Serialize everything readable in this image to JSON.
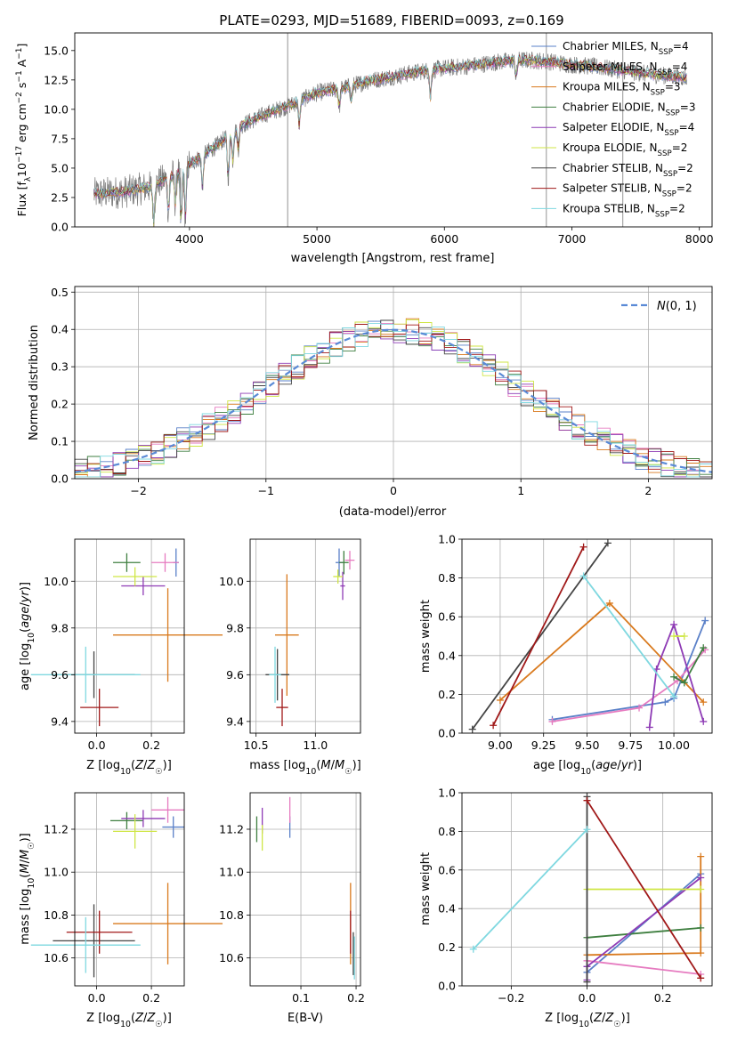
{
  "figure_title": "PLATE=0293, MJD=51689, FIBERID=0093, z=0.169",
  "colors": {
    "chabrier_miles": "#5a80c8",
    "salpeter_miles": "#e67bc0",
    "kroupa_miles": "#d97a1e",
    "chabrier_elodie": "#3f7f40",
    "salpeter_elodie": "#8e3bb5",
    "kroupa_elodie": "#cfe646",
    "chabrier_stelib": "#444444",
    "salpeter_stelib": "#a01818",
    "kroupa_stelib": "#7fd8e0",
    "observed": "#7a7a7a"
  },
  "chart_data": [
    {
      "id": "spectrum",
      "type": "line",
      "title": "PLATE=0293, MJD=51689, FIBERID=0093, z=0.169",
      "xlabel": "wavelength [Angstrom, rest frame]",
      "ylabel": "Flux [f_λ 10^-17 erg cm^-2 s^-1 A^-1]",
      "xlim": [
        3100,
        8100
      ],
      "ylim": [
        0,
        16.5
      ],
      "xticks": [
        4000,
        5000,
        6000,
        7000,
        8000
      ],
      "yticks": [
        0.0,
        2.5,
        5.0,
        7.5,
        10.0,
        12.5,
        15.0
      ],
      "legend_position": "top-right",
      "legend": [
        {
          "label": "Chabrier MILES, N",
          "sub": "SSP",
          "suffix": "=4",
          "color_key": "chabrier_miles"
        },
        {
          "label": "Salpeter MILES, N",
          "sub": "SSP",
          "suffix": "=4",
          "color_key": "salpeter_miles"
        },
        {
          "label": "Kroupa MILES, N",
          "sub": "SSP",
          "suffix": "=3",
          "color_key": "kroupa_miles"
        },
        {
          "label": "Chabrier ELODIE, N",
          "sub": "SSP",
          "suffix": "=3",
          "color_key": "chabrier_elodie"
        },
        {
          "label": "Salpeter ELODIE, N",
          "sub": "SSP",
          "suffix": "=4",
          "color_key": "salpeter_elodie"
        },
        {
          "label": "Kroupa ELODIE, N",
          "sub": "SSP",
          "suffix": "=2",
          "color_key": "kroupa_elodie"
        },
        {
          "label": "Chabrier STELIB, N",
          "sub": "SSP",
          "suffix": "=2",
          "color_key": "chabrier_stelib"
        },
        {
          "label": "Salpeter STELIB, N",
          "sub": "SSP",
          "suffix": "=2",
          "color_key": "salpeter_stelib"
        },
        {
          "label": "Kroupa STELIB, N",
          "sub": "SSP",
          "suffix": "=2",
          "color_key": "kroupa_stelib"
        }
      ],
      "continuum": {
        "x": [
          3250,
          3500,
          3700,
          3900,
          4000,
          4200,
          4400,
          4600,
          4800,
          5000,
          5200,
          5400,
          5600,
          5800,
          6000,
          6200,
          6400,
          6600,
          6800,
          7000,
          7200,
          7400,
          7600,
          7800,
          8000
        ],
        "y": [
          2.8,
          3.0,
          3.4,
          4.6,
          5.3,
          6.8,
          8.6,
          9.6,
          10.4,
          11.4,
          11.8,
          12.4,
          12.8,
          13.2,
          13.5,
          13.7,
          14.0,
          14.2,
          14.1,
          13.8,
          13.6,
          13.3,
          13.0,
          12.8,
          12.6
        ]
      },
      "spikes": [
        {
          "x": 4770,
          "y0": 0,
          "y1": 16.5
        },
        {
          "x": 6800,
          "y0": 0,
          "y1": 16.5
        },
        {
          "x": 7400,
          "y0": 0,
          "y1": 15.2
        },
        {
          "x": 3930,
          "y0": 0.3,
          "y1": 5.0
        }
      ]
    },
    {
      "id": "residuals",
      "type": "histogram",
      "xlabel": "(data-model)/error",
      "ylabel": "Normed distribution",
      "xlim": [
        -2.5,
        2.5
      ],
      "ylim": [
        0,
        0.515
      ],
      "xticks": [
        -2,
        -1,
        0,
        1,
        2
      ],
      "yticks": [
        0.0,
        0.1,
        0.2,
        0.3,
        0.4,
        0.5
      ],
      "bin_width": 0.1,
      "normal_label": "N(0,1)",
      "legend_position": "top-right"
    },
    {
      "id": "age_vs_Z",
      "type": "scatter",
      "xlabel": "Z [log10(Z/Z☉)]",
      "ylabel": "age [log10(age/yr)]",
      "xlim": [
        -0.08,
        0.32
      ],
      "ylim": [
        9.35,
        10.18
      ],
      "xticks": [
        0.0,
        0.2
      ],
      "yticks": [
        9.4,
        9.6,
        9.8,
        10.0
      ],
      "points": [
        {
          "s": "chabrier_miles",
          "x": 0.29,
          "y": 10.08,
          "xerr": 0.01,
          "yerr": 0.06
        },
        {
          "s": "salpeter_miles",
          "x": 0.25,
          "y": 10.08,
          "xerr": 0.05,
          "yerr": 0.04
        },
        {
          "s": "kroupa_miles",
          "x": 0.26,
          "y": 9.77,
          "xerr": 0.2,
          "yerr": 0.2
        },
        {
          "s": "chabrier_elodie",
          "x": 0.11,
          "y": 10.08,
          "xerr": 0.05,
          "yerr": 0.04
        },
        {
          "s": "salpeter_elodie",
          "x": 0.17,
          "y": 9.98,
          "xerr": 0.08,
          "yerr": 0.04
        },
        {
          "s": "kroupa_elodie",
          "x": 0.14,
          "y": 10.02,
          "xerr": 0.08,
          "yerr": 0.04
        },
        {
          "s": "chabrier_stelib",
          "x": -0.01,
          "y": 9.6,
          "xerr": 0.15,
          "yerr": 0.1
        },
        {
          "s": "salpeter_stelib",
          "x": 0.01,
          "y": 9.46,
          "xerr": 0.07,
          "yerr": 0.08
        },
        {
          "s": "kroupa_stelib",
          "x": -0.04,
          "y": 9.6,
          "xerr": 0.2,
          "yerr": 0.12
        }
      ]
    },
    {
      "id": "age_vs_mass",
      "type": "scatter",
      "xlabel": "mass [log10(M/M☉)]",
      "ylabel": "",
      "xlim": [
        10.45,
        11.38
      ],
      "ylim": [
        9.35,
        10.18
      ],
      "xticks": [
        10.5,
        11.0
      ],
      "yticks": [
        9.4,
        9.6,
        9.8,
        10.0
      ],
      "points": [
        {
          "s": "chabrier_miles",
          "x": 11.2,
          "y": 10.08,
          "xerr": 0.03,
          "yerr": 0.06
        },
        {
          "s": "salpeter_miles",
          "x": 11.29,
          "y": 10.09,
          "xerr": 0.04,
          "yerr": 0.04
        },
        {
          "s": "kroupa_miles",
          "x": 10.76,
          "y": 9.77,
          "xerr": 0.1,
          "yerr": 0.26
        },
        {
          "s": "chabrier_elodie",
          "x": 11.24,
          "y": 10.08,
          "xerr": 0.04,
          "yerr": 0.05
        },
        {
          "s": "salpeter_elodie",
          "x": 11.23,
          "y": 9.98,
          "xerr": 0.02,
          "yerr": 0.06
        },
        {
          "s": "kroupa_elodie",
          "x": 11.19,
          "y": 10.02,
          "xerr": 0.04,
          "yerr": 0.03
        },
        {
          "s": "chabrier_stelib",
          "x": 10.68,
          "y": 9.6,
          "xerr": 0.1,
          "yerr": 0.11
        },
        {
          "s": "salpeter_stelib",
          "x": 10.72,
          "y": 9.46,
          "xerr": 0.05,
          "yerr": 0.08
        },
        {
          "s": "kroupa_stelib",
          "x": 10.66,
          "y": 9.6,
          "xerr": 0.05,
          "yerr": 0.12
        }
      ]
    },
    {
      "id": "weight_vs_age",
      "type": "line",
      "xlabel": "age [log10(age/yr)]",
      "ylabel": "mass weight",
      "xlim": [
        8.78,
        10.22
      ],
      "ylim": [
        0,
        1.0
      ],
      "xticks": [
        9.0,
        9.25,
        9.5,
        9.75,
        10.0
      ],
      "yticks": [
        0.0,
        0.2,
        0.4,
        0.6,
        0.8,
        1.0
      ],
      "series": [
        {
          "s": "chabrier_miles",
          "x": [
            9.3,
            9.95,
            10.0,
            10.18
          ],
          "y": [
            0.07,
            0.16,
            0.18,
            0.58
          ]
        },
        {
          "s": "salpeter_miles",
          "x": [
            9.3,
            9.8,
            10.02,
            10.18
          ],
          "y": [
            0.06,
            0.13,
            0.27,
            0.43
          ]
        },
        {
          "s": "kroupa_miles",
          "x": [
            9.0,
            9.63,
            10.17
          ],
          "y": [
            0.17,
            0.67,
            0.16
          ]
        },
        {
          "s": "chabrier_elodie",
          "x": [
            10.0,
            10.06,
            10.17
          ],
          "y": [
            0.29,
            0.26,
            0.44
          ]
        },
        {
          "s": "salpeter_elodie",
          "x": [
            9.86,
            9.9,
            10.0,
            10.17
          ],
          "y": [
            0.03,
            0.33,
            0.56,
            0.06
          ]
        },
        {
          "s": "kroupa_elodie",
          "x": [
            10.0,
            10.06
          ],
          "y": [
            0.5,
            0.5
          ]
        },
        {
          "s": "chabrier_stelib",
          "x": [
            8.84,
            9.62
          ],
          "y": [
            0.02,
            0.98
          ]
        },
        {
          "s": "salpeter_stelib",
          "x": [
            8.96,
            9.48
          ],
          "y": [
            0.04,
            0.96
          ]
        },
        {
          "s": "kroupa_stelib",
          "x": [
            9.48,
            10.0
          ],
          "y": [
            0.81,
            0.19
          ]
        }
      ]
    },
    {
      "id": "mass_vs_Z",
      "type": "scatter",
      "xlabel": "Z [log10(Z/Z☉)]",
      "ylabel": "mass [log10(M/M☉)]",
      "xlim": [
        -0.08,
        0.32
      ],
      "ylim": [
        10.47,
        11.37
      ],
      "xticks": [
        0.0,
        0.2
      ],
      "yticks": [
        10.6,
        10.8,
        11.0,
        11.2
      ],
      "points": [
        {
          "s": "chabrier_miles",
          "x": 0.28,
          "y": 11.21,
          "xerr": 0.04,
          "yerr": 0.05
        },
        {
          "s": "salpeter_miles",
          "x": 0.26,
          "y": 11.29,
          "xerr": 0.06,
          "yerr": 0.06
        },
        {
          "s": "kroupa_miles",
          "x": 0.26,
          "y": 10.76,
          "xerr": 0.2,
          "yerr": 0.19
        },
        {
          "s": "chabrier_elodie",
          "x": 0.11,
          "y": 11.24,
          "xerr": 0.06,
          "yerr": 0.04
        },
        {
          "s": "salpeter_elodie",
          "x": 0.17,
          "y": 11.25,
          "xerr": 0.08,
          "yerr": 0.04
        },
        {
          "s": "kroupa_elodie",
          "x": 0.14,
          "y": 11.19,
          "xerr": 0.08,
          "yerr": 0.08
        },
        {
          "s": "chabrier_stelib",
          "x": -0.01,
          "y": 10.68,
          "xerr": 0.15,
          "yerr": 0.17
        },
        {
          "s": "salpeter_stelib",
          "x": 0.01,
          "y": 10.72,
          "xerr": 0.12,
          "yerr": 0.1
        },
        {
          "s": "kroupa_stelib",
          "x": -0.04,
          "y": 10.66,
          "xerr": 0.2,
          "yerr": 0.13
        }
      ]
    },
    {
      "id": "mass_vs_ebv",
      "type": "scatter",
      "xlabel": "E(B-V)",
      "ylabel": "",
      "xlim": [
        0.008,
        0.208
      ],
      "ylim": [
        10.47,
        11.37
      ],
      "xticks": [
        0.1,
        0.2
      ],
      "yticks": [
        10.6,
        10.8,
        11.0,
        11.2
      ],
      "points": [
        {
          "s": "chabrier_miles",
          "x": 0.08,
          "y": 11.21,
          "xerr": 0.0,
          "yerr": 0.05
        },
        {
          "s": "salpeter_miles",
          "x": 0.08,
          "y": 11.29,
          "xerr": 0.0,
          "yerr": 0.06
        },
        {
          "s": "kroupa_miles",
          "x": 0.19,
          "y": 10.76,
          "xerr": 0.0,
          "yerr": 0.19
        },
        {
          "s": "chabrier_elodie",
          "x": 0.02,
          "y": 11.2,
          "xerr": 0.0,
          "yerr": 0.06
        },
        {
          "s": "salpeter_elodie",
          "x": 0.03,
          "y": 11.24,
          "xerr": 0.0,
          "yerr": 0.06
        },
        {
          "s": "kroupa_elodie",
          "x": 0.03,
          "y": 11.16,
          "xerr": 0.0,
          "yerr": 0.06
        },
        {
          "s": "chabrier_stelib",
          "x": 0.195,
          "y": 10.62,
          "xerr": 0.0,
          "yerr": 0.1
        },
        {
          "s": "salpeter_stelib",
          "x": 0.19,
          "y": 10.72,
          "xerr": 0.0,
          "yerr": 0.1
        },
        {
          "s": "kroupa_stelib",
          "x": 0.197,
          "y": 10.6,
          "xerr": 0.0,
          "yerr": 0.1
        }
      ]
    },
    {
      "id": "weight_vs_Z",
      "type": "line",
      "xlabel": "Z [log10(Z/Z☉)]",
      "ylabel": "mass weight",
      "xlim": [
        -0.33,
        0.33
      ],
      "ylim": [
        0,
        1.0
      ],
      "xticks": [
        -0.2,
        0.0,
        0.2
      ],
      "yticks": [
        0.0,
        0.2,
        0.4,
        0.6,
        0.8,
        1.0
      ],
      "series": [
        {
          "s": "chabrier_miles",
          "x": [
            0.0,
            0.3
          ],
          "y": [
            0.07,
            0.58
          ]
        },
        {
          "s": "salpeter_miles",
          "x": [
            0.0,
            0.3
          ],
          "y": [
            0.13,
            0.06
          ]
        },
        {
          "s": "kroupa_miles",
          "x": [
            0.0,
            0.3,
            0.3
          ],
          "y": [
            0.16,
            0.17,
            0.67
          ]
        },
        {
          "s": "chabrier_elodie",
          "x": [
            0.0,
            0.3
          ],
          "y": [
            0.25,
            0.3
          ]
        },
        {
          "s": "salpeter_elodie",
          "x": [
            0.0,
            0.0,
            0.3
          ],
          "y": [
            0.03,
            0.1,
            0.56
          ]
        },
        {
          "s": "kroupa_elodie",
          "x": [
            0.0,
            0.3
          ],
          "y": [
            0.5,
            0.5
          ]
        },
        {
          "s": "chabrier_stelib",
          "x": [
            0.0,
            0.0
          ],
          "y": [
            0.02,
            0.98
          ]
        },
        {
          "s": "salpeter_stelib",
          "x": [
            0.0,
            0.3
          ],
          "y": [
            0.96,
            0.04
          ]
        },
        {
          "s": "kroupa_stelib",
          "x": [
            -0.3,
            0.0
          ],
          "y": [
            0.19,
            0.81
          ]
        }
      ]
    }
  ]
}
